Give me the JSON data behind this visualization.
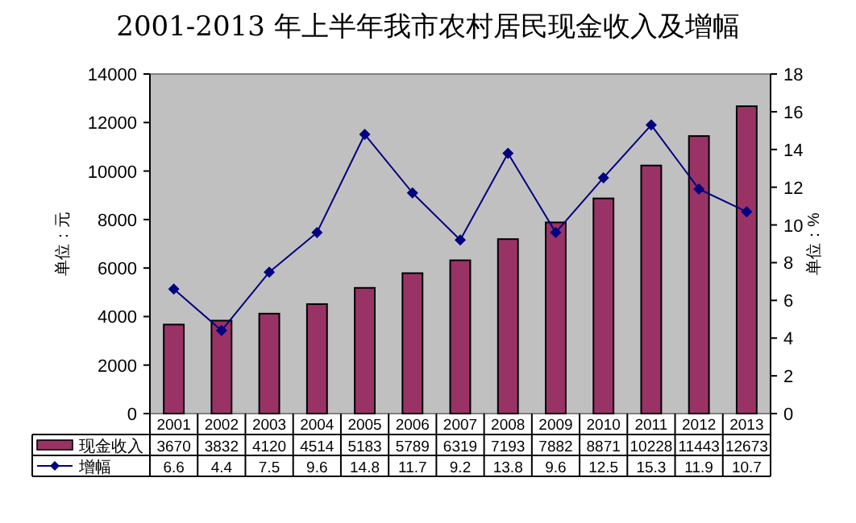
{
  "chart_data": {
    "type": "bar",
    "title": "2001-2013 年上半年我市农村居民现金收入及增幅",
    "ylabel": "单位：元",
    "y2label": "单位：%",
    "categories": [
      "2001",
      "2002",
      "2003",
      "2004",
      "2005",
      "2006",
      "2007",
      "2008",
      "2009",
      "2010",
      "2011",
      "2012",
      "2013"
    ],
    "series": [
      {
        "name": "现金收入",
        "color": "#993366",
        "values": [
          3670,
          3832,
          4120,
          4514,
          5183,
          5789,
          6319,
          7193,
          7882,
          8871,
          10228,
          11443,
          12673
        ]
      },
      {
        "name": "增幅",
        "type": "line",
        "axis": "y2",
        "color": "#000080",
        "values": [
          6.6,
          4.4,
          7.5,
          9.6,
          14.8,
          11.7,
          9.2,
          13.8,
          9.6,
          12.5,
          15.3,
          11.9,
          10.7
        ]
      }
    ],
    "ylim": [
      0,
      14000
    ],
    "yticks": [
      0,
      2000,
      4000,
      6000,
      8000,
      10000,
      12000,
      14000
    ],
    "y2lim": [
      0,
      18
    ],
    "y2ticks": [
      0,
      2,
      4,
      6,
      8,
      10,
      12,
      14,
      16,
      18
    ],
    "marker": "diamond",
    "data_labels": true,
    "legend": "bottom",
    "grid": false
  }
}
